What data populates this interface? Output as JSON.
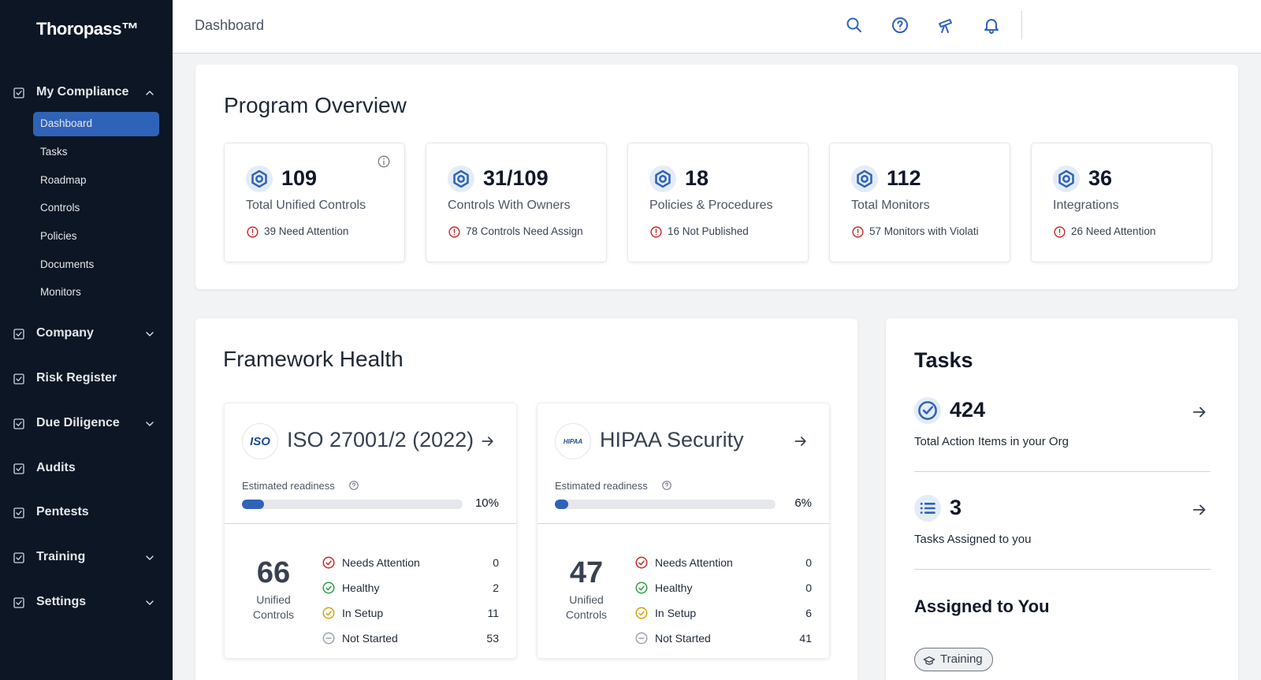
{
  "sidebar": {
    "logo": "Thoropass™",
    "nav": [
      {
        "label": "My Compliance",
        "chevron": "up",
        "children": [
          {
            "label": "Dashboard",
            "active": true
          },
          {
            "label": "Tasks"
          },
          {
            "label": "Roadmap"
          },
          {
            "label": "Controls"
          },
          {
            "label": "Policies"
          },
          {
            "label": "Documents"
          },
          {
            "label": "Monitors"
          }
        ]
      },
      {
        "label": "Company",
        "chevron": "down"
      },
      {
        "label": "Risk Register"
      },
      {
        "label": "Due Diligence",
        "chevron": "down"
      },
      {
        "label": "Audits"
      },
      {
        "label": "Pentests"
      },
      {
        "label": "Training",
        "chevron": "down"
      },
      {
        "label": "Settings",
        "chevron": "down"
      }
    ]
  },
  "header": {
    "title": "Dashboard"
  },
  "overview": {
    "title": "Program Overview",
    "cards": [
      {
        "value": 109,
        "label": "Total Unified Controls",
        "alert": "39 Need Attention"
      },
      {
        "value": "31/109",
        "label": "Controls With Owners",
        "alert": "78 Controls Need Assign"
      },
      {
        "value": 18,
        "label": "Policies & Procedures",
        "alert": "16 Not Published"
      },
      {
        "value": 112,
        "label": "Total Monitors",
        "alert": "57 Monitors with Violati"
      },
      {
        "value": 36,
        "label": "Integrations",
        "alert": "26 Need Attention"
      }
    ]
  },
  "framework": {
    "title": "Framework Health",
    "items": [
      {
        "name": "ISO 27001/2 (2022)",
        "logo": "ISO",
        "readiness_title": "Estimated readiness",
        "readiness": {
          "value": 10,
          "label": "10%"
        },
        "total": 66,
        "total_label": "Unified Controls",
        "statuses": [
          {
            "label": "Needs Attention",
            "count": 0
          },
          {
            "label": "Healthy",
            "count": 2
          },
          {
            "label": "In Setup",
            "count": 11
          },
          {
            "label": "Not Started",
            "count": 53
          }
        ]
      },
      {
        "name": "HIPAA Security",
        "logo": "HIPAA",
        "readiness_title": "Estimated readiness",
        "readiness": {
          "value": 6,
          "label": "6%"
        },
        "total": 47,
        "total_label": "Unified Controls",
        "statuses": [
          {
            "label": "Needs Attention",
            "count": 0
          },
          {
            "label": "Healthy",
            "count": 0
          },
          {
            "label": "In Setup",
            "count": 6
          },
          {
            "label": "Not Started",
            "count": 41
          }
        ]
      }
    ]
  },
  "tasks": {
    "title": "Tasks",
    "items": [
      {
        "value": 424,
        "label": "Total Action Items in your Org"
      },
      {
        "value": 3,
        "label": "Tasks Assigned to you"
      }
    ],
    "assigned_title": "Assigned to You",
    "filter": "Training"
  }
}
